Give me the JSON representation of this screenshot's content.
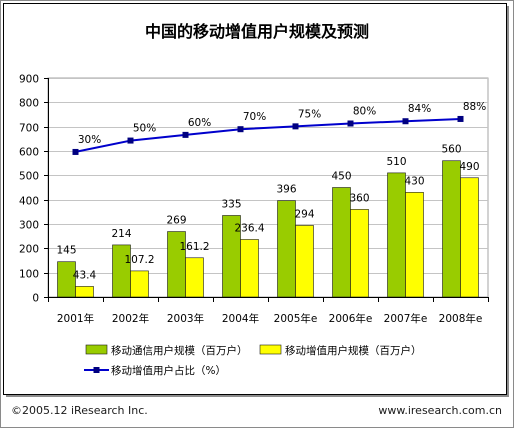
{
  "chart_data": {
    "type": "bar",
    "title": "中国的移动增值用户规模及预测",
    "categories": [
      "2001年",
      "2002年",
      "2003年",
      "2004年",
      "2005年e",
      "2006年e",
      "2007年e",
      "2008年e"
    ],
    "ylim": [
      0,
      900
    ],
    "yticks": [
      0,
      100,
      200,
      300,
      400,
      500,
      600,
      700,
      800,
      900
    ],
    "grid": true,
    "legend_position": "bottom",
    "series": [
      {
        "name": "移动通信用户规模（百万户）",
        "type": "bar",
        "color": "#99cc00",
        "values": [
          145,
          214,
          269,
          335,
          396,
          450,
          510,
          560
        ]
      },
      {
        "name": "移动增值用户规模（百万户）",
        "type": "bar",
        "color": "#ffff00",
        "values": [
          43.4,
          107.2,
          161.2,
          236.4,
          294,
          360,
          430,
          490
        ]
      },
      {
        "name": "移动增值用户占比（%）",
        "type": "line",
        "color": "#0000cc",
        "marker_color": "#000080",
        "values": [
          30,
          50,
          60,
          70,
          75,
          80,
          84,
          88
        ],
        "labels": [
          "30%",
          "50%",
          "60%",
          "70%",
          "75%",
          "80%",
          "84%",
          "88%"
        ]
      }
    ]
  },
  "footer": {
    "copyright": "©2005.12 iResearch Inc.",
    "website": "www.iresearch.com.cn"
  }
}
